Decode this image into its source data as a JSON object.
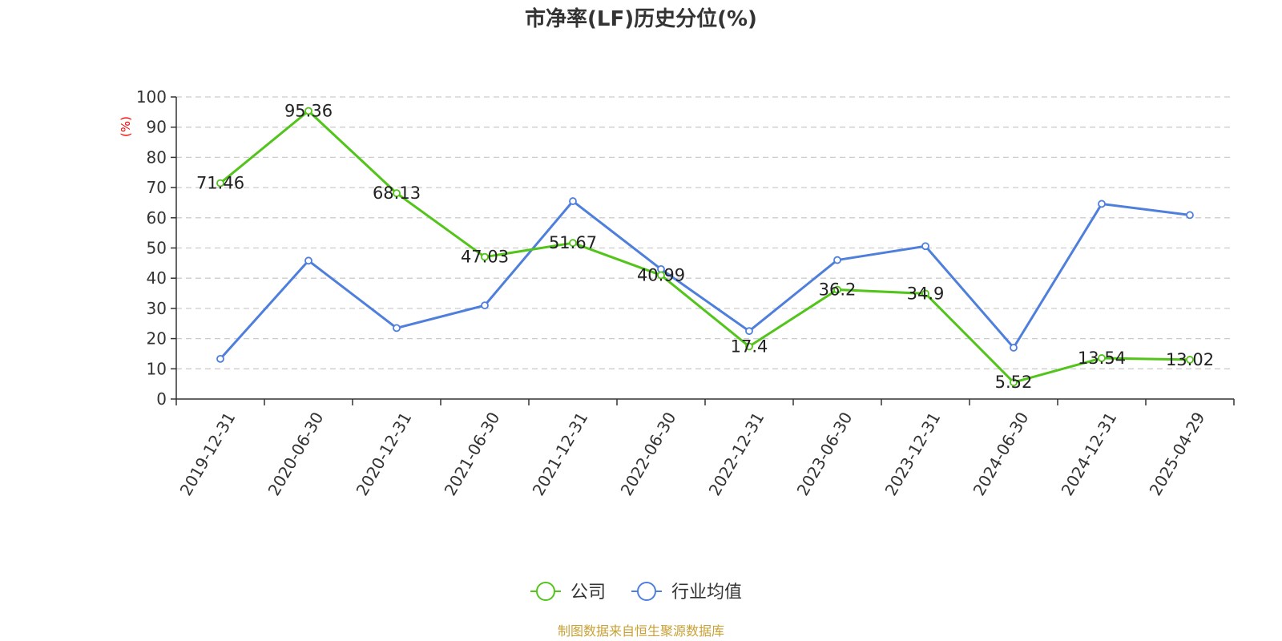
{
  "chart_data": {
    "type": "line",
    "title": "市净率(LF)历史分位(%)",
    "ylabel": "(%)",
    "xlabel": "",
    "ylim": [
      0,
      100
    ],
    "yticks": [
      0,
      10,
      20,
      30,
      40,
      50,
      60,
      70,
      80,
      90,
      100
    ],
    "grid": true,
    "legend_position": "bottom-center",
    "categories": [
      "2019-12-31",
      "2020-06-30",
      "2020-12-31",
      "2021-06-30",
      "2021-12-31",
      "2022-06-30",
      "2022-12-31",
      "2023-06-30",
      "2023-12-31",
      "2024-06-30",
      "2024-12-31",
      "2025-04-29"
    ],
    "series": [
      {
        "name": "公司",
        "color": "#52c41a",
        "values": [
          71.46,
          95.36,
          68.13,
          47.03,
          51.67,
          40.99,
          17.4,
          36.2,
          34.9,
          5.52,
          13.54,
          13.02
        ],
        "labels": [
          "71.46",
          "95.36",
          "68.13",
          "47.03",
          "51.67",
          "40.99",
          "17.4",
          "36.2",
          "34.9",
          "5.52",
          "13.54",
          "13.02"
        ]
      },
      {
        "name": "行业均值",
        "color": "#4e7fdc",
        "values": [
          13.3,
          45.8,
          23.5,
          31.0,
          65.5,
          43.0,
          22.5,
          46.0,
          50.6,
          17.0,
          64.6,
          60.9
        ]
      }
    ]
  },
  "colors": {
    "ylabel": "#ff0000",
    "source": "#c8a035",
    "axis": "#333333",
    "grid": "#cccccc"
  },
  "source": "制图数据来自恒生聚源数据库"
}
